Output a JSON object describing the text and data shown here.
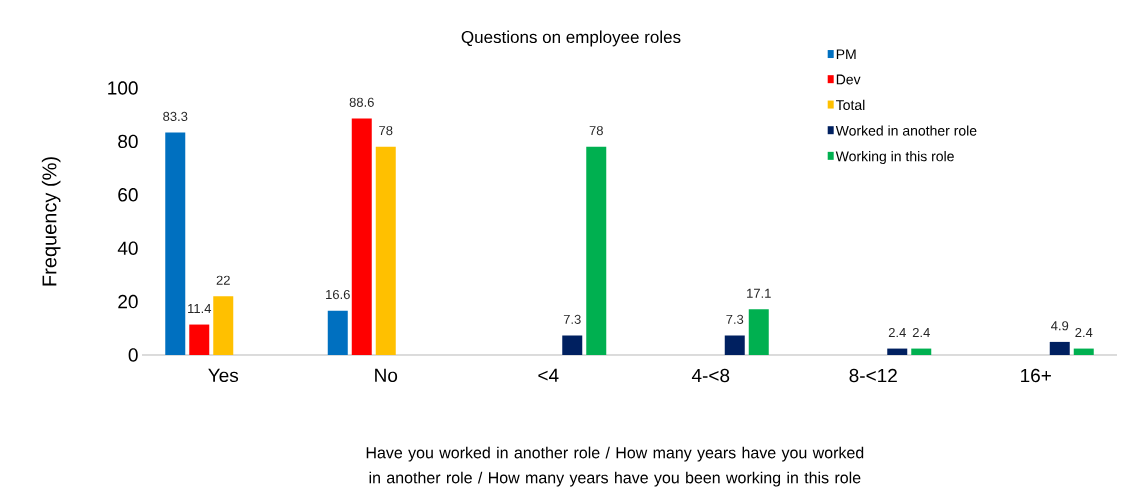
{
  "chart_data": {
    "type": "bar",
    "title": "Questions on employee roles",
    "xlabel": "Have you worked in another role / How many years have you worked in another role /  How many years have you been working in this role",
    "ylabel": "Frequency (%)",
    "categories": [
      "Yes",
      "No",
      "<4",
      "4-<8",
      "8-<12",
      "16+"
    ],
    "series": [
      {
        "name": "PM",
        "color": "#0070c0",
        "values": [
          83.3,
          16.6,
          null,
          null,
          null,
          null
        ]
      },
      {
        "name": "Dev",
        "color": "#ff0000",
        "values": [
          11.4,
          88.6,
          null,
          null,
          null,
          null
        ]
      },
      {
        "name": "Total",
        "color": "#ffc000",
        "values": [
          22,
          78,
          null,
          null,
          null,
          null
        ]
      },
      {
        "name": "Worked in another role",
        "color": "#002060",
        "values": [
          null,
          null,
          7.3,
          7.3,
          2.4,
          4.9
        ]
      },
      {
        "name": "Working in this role",
        "color": "#00b050",
        "values": [
          null,
          null,
          78,
          17.1,
          2.4,
          2.4
        ]
      }
    ],
    "ylim": [
      0,
      100
    ],
    "yticks": [
      0,
      20,
      40,
      60,
      80,
      100
    ],
    "data_labels": true,
    "legend": "top right",
    "grid": false
  }
}
